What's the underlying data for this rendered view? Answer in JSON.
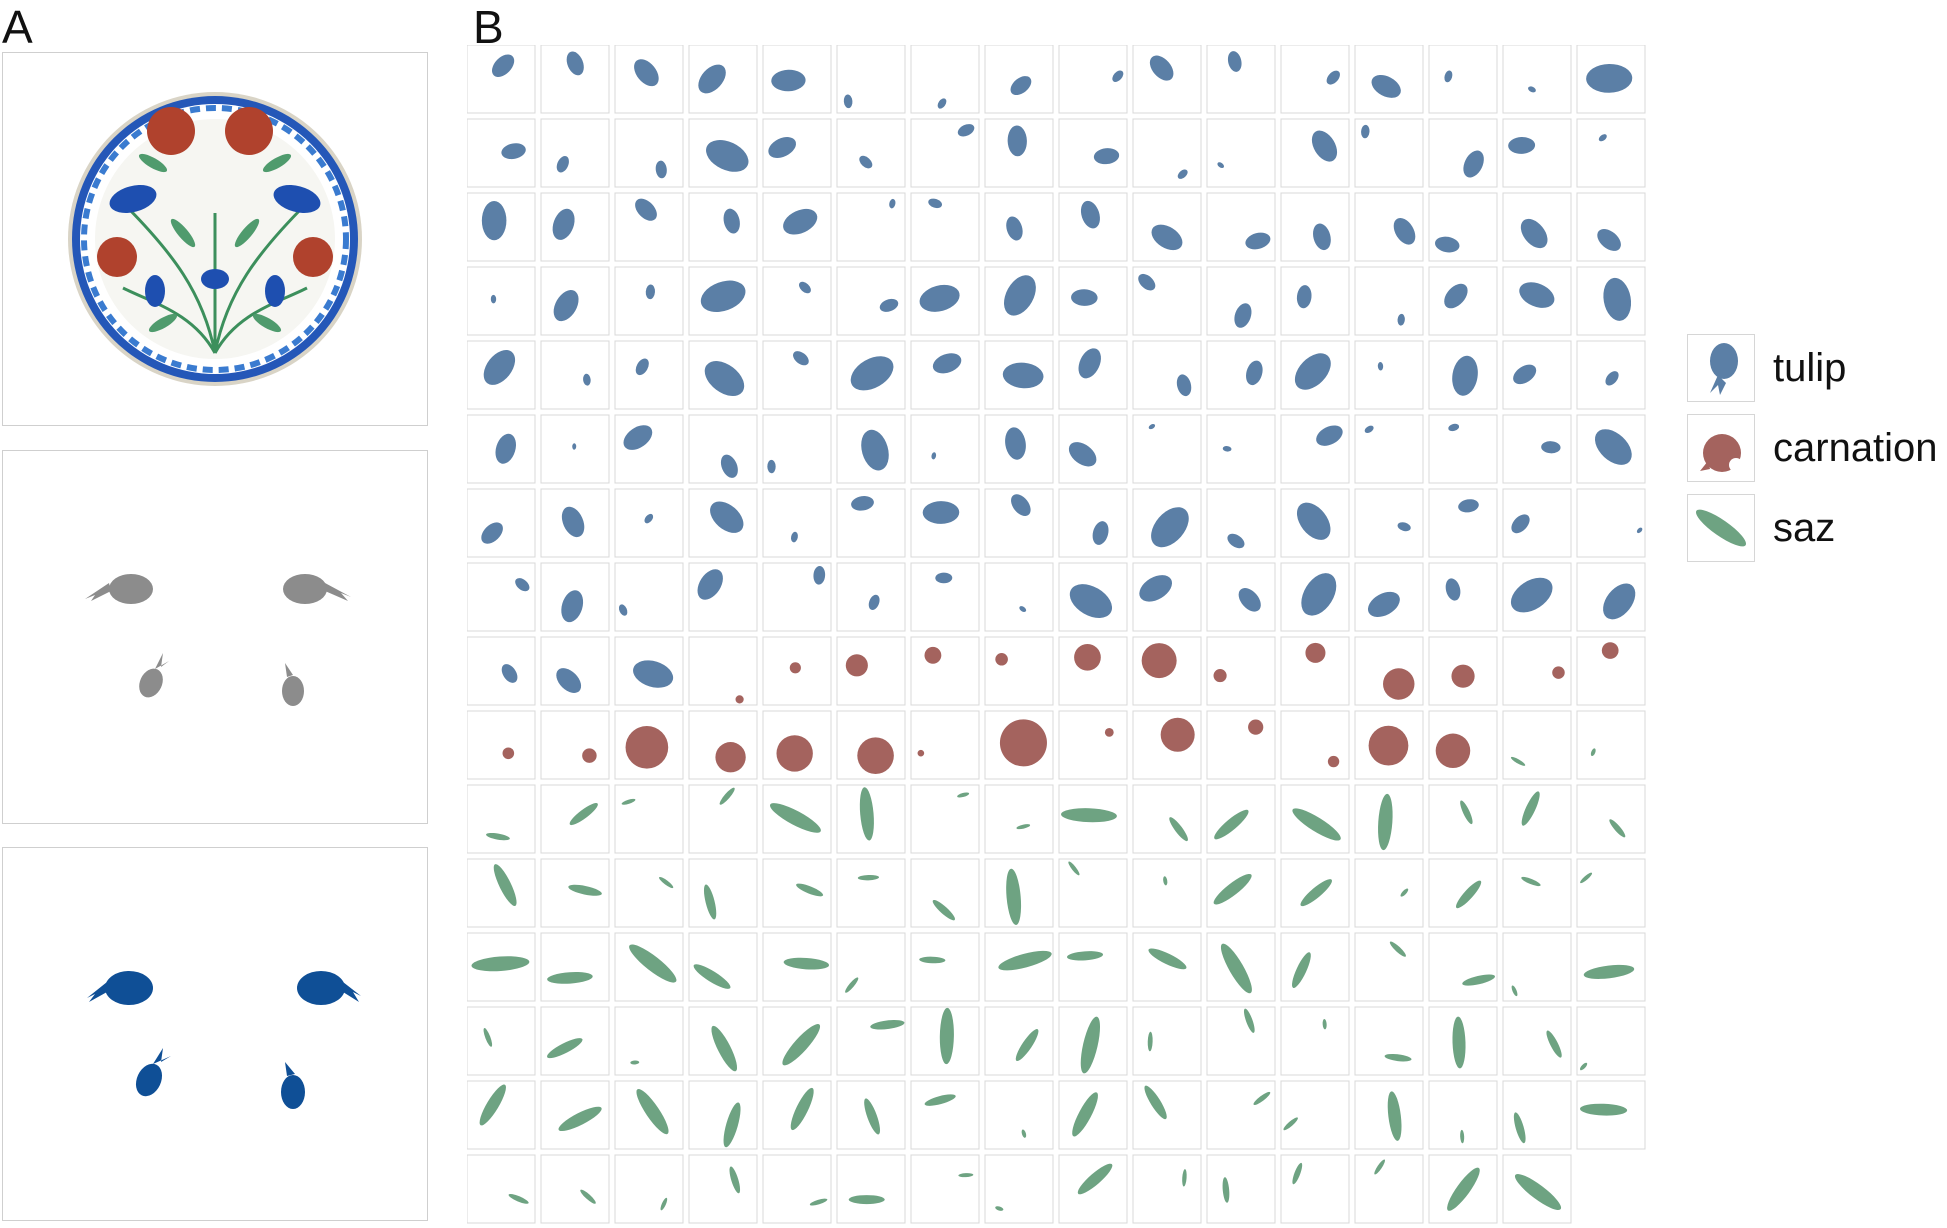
{
  "panels": {
    "a_label": "A",
    "b_label": "B"
  },
  "colors": {
    "tulip": "#5b7fa6",
    "carnation": "#a4635e",
    "saz": "#6ea382",
    "gray": "#8c8c8c",
    "blue": "#0f4f96"
  },
  "legend": [
    {
      "label": "tulip",
      "icon": "tulip-icon"
    },
    {
      "label": "carnation",
      "icon": "carnation-icon"
    },
    {
      "label": "saz",
      "icon": "saz-icon"
    }
  ],
  "grid": {
    "columns": 16,
    "rows": [
      [
        "tulip",
        "tulip",
        "tulip",
        "tulip",
        "tulip",
        "tulip",
        "tulip",
        "tulip",
        "tulip",
        "tulip",
        "tulip",
        "tulip",
        "tulip",
        "tulip",
        "tulip",
        "tulip"
      ],
      [
        "tulip",
        "tulip",
        "tulip",
        "tulip",
        "tulip",
        "tulip",
        "tulip",
        "tulip",
        "tulip",
        "tulip",
        "tulip",
        "tulip",
        "tulip",
        "tulip",
        "tulip",
        "tulip"
      ],
      [
        "tulip",
        "tulip",
        "tulip",
        "tulip",
        "tulip",
        "tulip",
        "tulip",
        "tulip",
        "tulip",
        "tulip",
        "tulip",
        "tulip",
        "tulip",
        "tulip",
        "tulip",
        "tulip"
      ],
      [
        "tulip",
        "tulip",
        "tulip",
        "tulip",
        "tulip",
        "tulip",
        "tulip",
        "tulip",
        "tulip",
        "tulip",
        "tulip",
        "tulip",
        "tulip",
        "tulip",
        "tulip",
        "tulip"
      ],
      [
        "tulip",
        "tulip",
        "tulip",
        "tulip",
        "tulip",
        "tulip",
        "tulip",
        "tulip",
        "tulip",
        "tulip",
        "tulip",
        "tulip",
        "tulip",
        "tulip",
        "tulip",
        "tulip"
      ],
      [
        "tulip",
        "tulip",
        "tulip",
        "tulip",
        "tulip",
        "tulip",
        "tulip",
        "tulip",
        "tulip",
        "tulip",
        "tulip",
        "tulip",
        "tulip",
        "tulip",
        "tulip",
        "tulip"
      ],
      [
        "tulip",
        "tulip",
        "tulip",
        "tulip",
        "tulip",
        "tulip",
        "tulip",
        "tulip",
        "tulip",
        "tulip",
        "tulip",
        "tulip",
        "tulip",
        "tulip",
        "tulip",
        "tulip"
      ],
      [
        "tulip",
        "tulip",
        "tulip",
        "tulip",
        "tulip",
        "tulip",
        "tulip",
        "tulip",
        "tulip",
        "tulip",
        "tulip",
        "tulip",
        "tulip",
        "tulip",
        "tulip",
        "tulip"
      ],
      [
        "tulip",
        "tulip",
        "tulip",
        "carnation",
        "carnation",
        "carnation",
        "carnation",
        "carnation",
        "carnation",
        "carnation",
        "carnation",
        "carnation",
        "carnation",
        "carnation",
        "carnation",
        "carnation"
      ],
      [
        "carnation",
        "carnation",
        "carnation",
        "carnation",
        "carnation",
        "carnation",
        "carnation",
        "carnation",
        "carnation",
        "carnation",
        "carnation",
        "carnation",
        "carnation",
        "carnation",
        "saz",
        "saz"
      ],
      [
        "saz",
        "saz",
        "saz",
        "saz",
        "saz",
        "saz",
        "saz",
        "saz",
        "saz",
        "saz",
        "saz",
        "saz",
        "saz",
        "saz",
        "saz",
        "saz"
      ],
      [
        "saz",
        "saz",
        "saz",
        "saz",
        "saz",
        "saz",
        "saz",
        "saz",
        "saz",
        "saz",
        "saz",
        "saz",
        "saz",
        "saz",
        "saz",
        "saz"
      ],
      [
        "saz",
        "saz",
        "saz",
        "saz",
        "saz",
        "saz",
        "saz",
        "saz",
        "saz",
        "saz",
        "saz",
        "saz",
        "saz",
        "saz",
        "saz",
        "saz"
      ],
      [
        "saz",
        "saz",
        "saz",
        "saz",
        "saz",
        "saz",
        "saz",
        "saz",
        "saz",
        "saz",
        "saz",
        "saz",
        "saz",
        "saz",
        "saz",
        "saz"
      ],
      [
        "saz",
        "saz",
        "saz",
        "saz",
        "saz",
        "saz",
        "saz",
        "saz",
        "saz",
        "saz",
        "saz",
        "saz",
        "saz",
        "saz",
        "saz",
        "saz"
      ],
      [
        "saz",
        "saz",
        "saz",
        "saz",
        "saz",
        "saz",
        "saz",
        "saz",
        "saz",
        "saz",
        "saz",
        "saz",
        "saz",
        "saz",
        "saz"
      ]
    ]
  }
}
